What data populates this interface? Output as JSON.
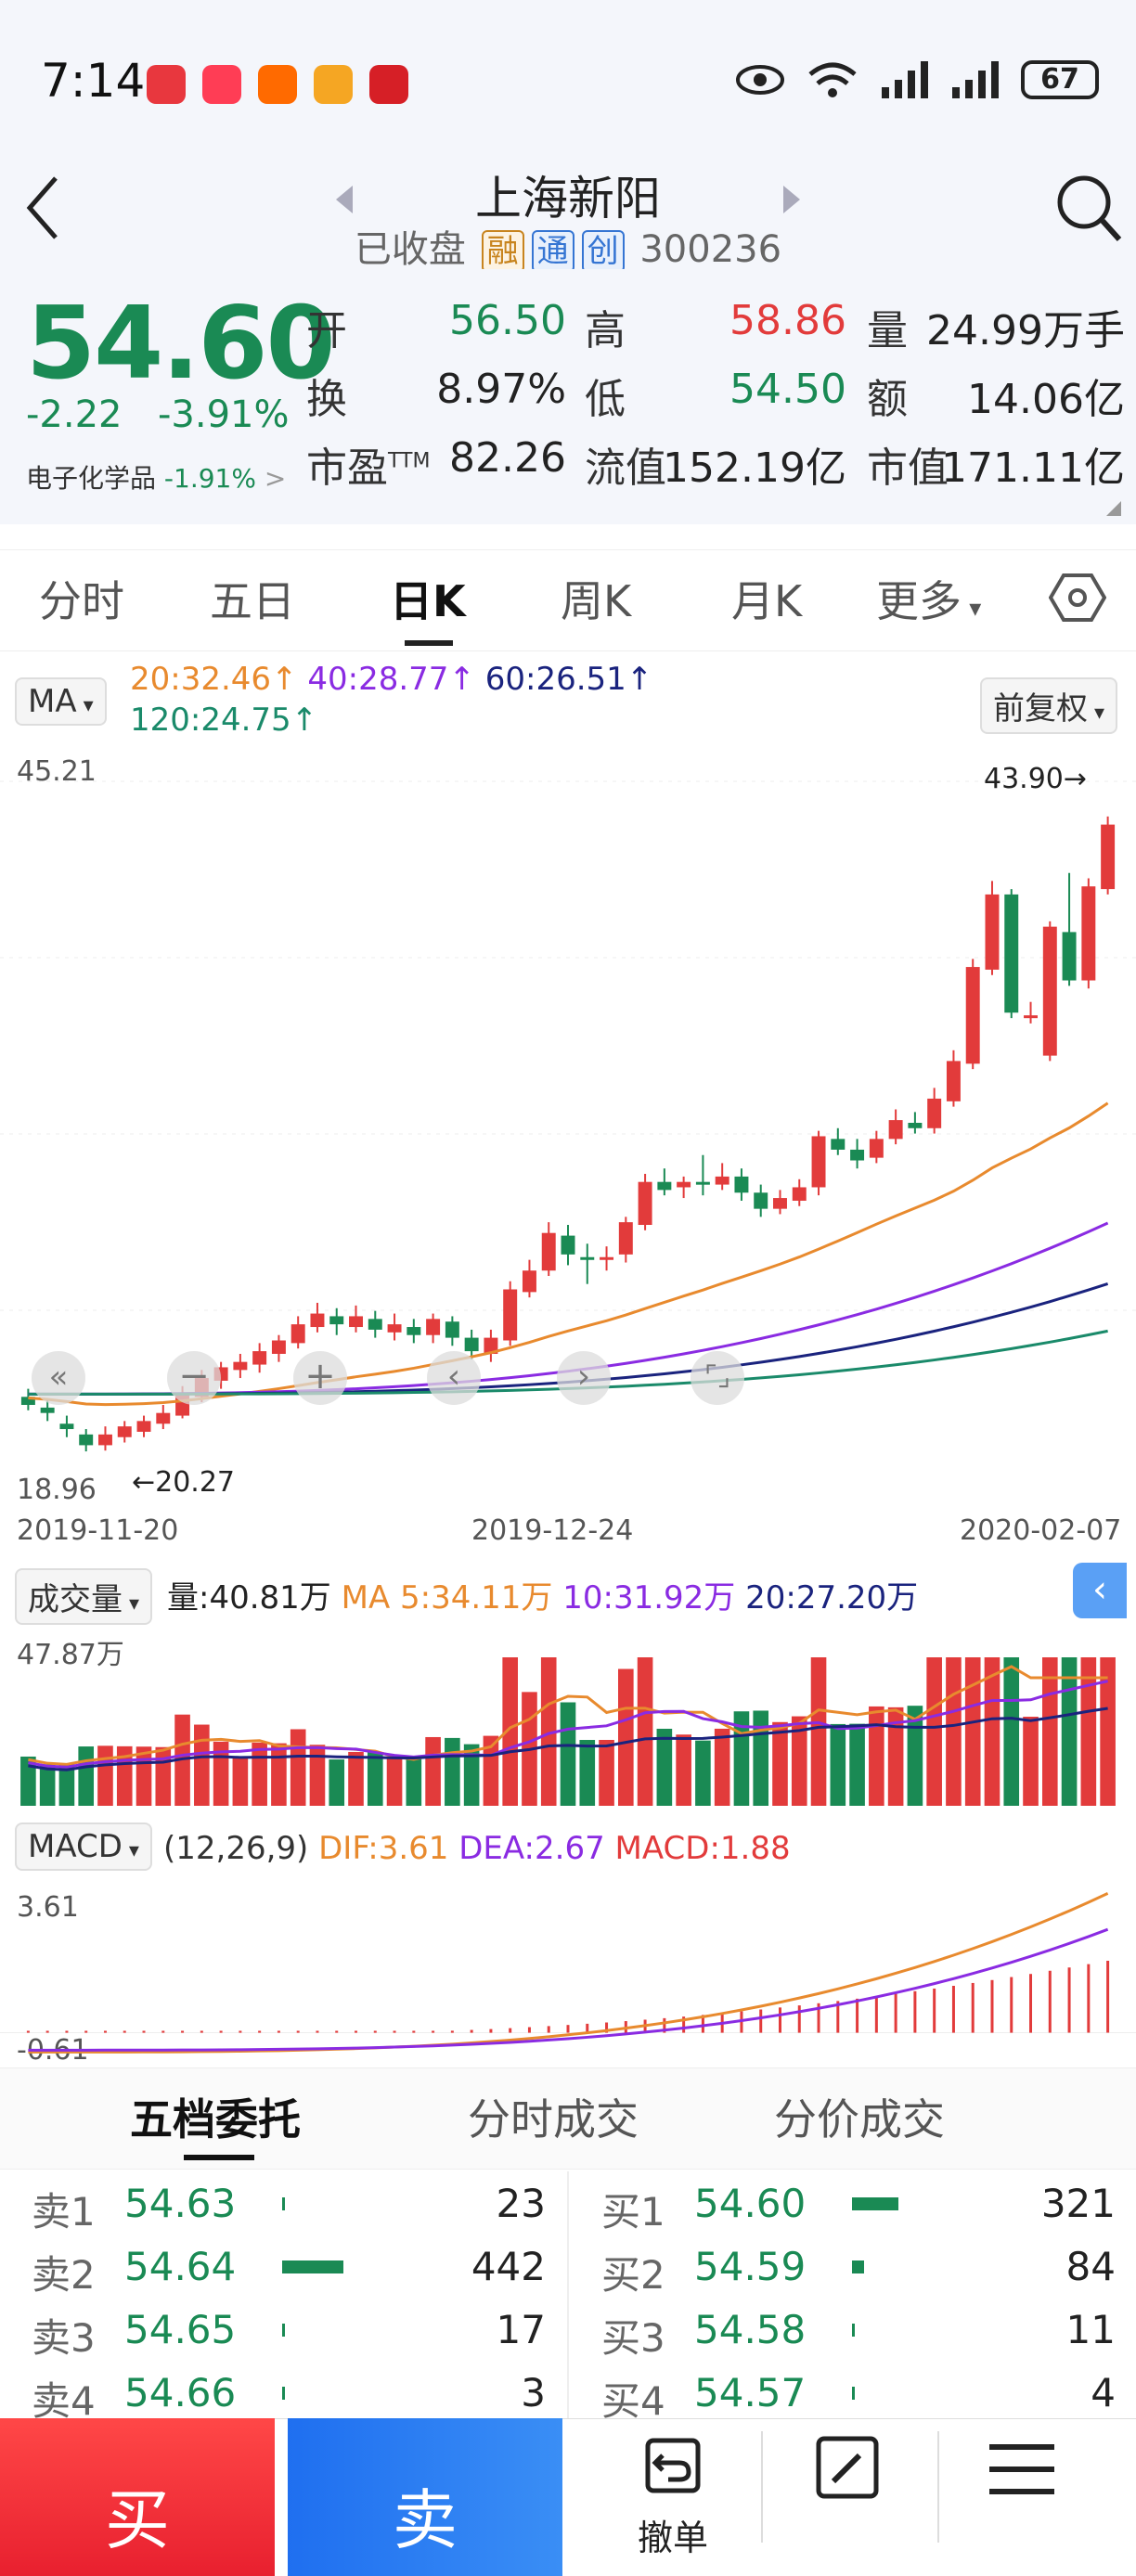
{
  "status_bar": {
    "time": "7:14",
    "battery": "67"
  },
  "header": {
    "title": "上海新阳",
    "status": "已收盘",
    "tags": [
      "融",
      "通",
      "创"
    ],
    "code": "300236"
  },
  "quote": {
    "price": "54.60",
    "change": "-2.22",
    "change_pct": "-3.91%",
    "sector": "电子化学品",
    "sector_pct": "-1.91%",
    "fields": [
      {
        "label": "开",
        "value": "56.50",
        "color": "green"
      },
      {
        "label": "高",
        "value": "58.86",
        "color": "red"
      },
      {
        "label": "量",
        "value": "24.99万手",
        "color": "dark"
      },
      {
        "label": "换",
        "value": "8.97%",
        "color": "dark"
      },
      {
        "label": "低",
        "value": "54.50",
        "color": "green"
      },
      {
        "label": "额",
        "value": "14.06亿",
        "color": "dark"
      },
      {
        "label": "市盈",
        "value": "82.26",
        "color": "dark"
      },
      {
        "label": "流值",
        "value": "152.19亿",
        "color": "dark"
      },
      {
        "label": "市值",
        "value": "171.11亿",
        "color": "dark"
      }
    ],
    "pe_superscript": "TTM"
  },
  "tabs": [
    "分时",
    "五日",
    "日K",
    "周K",
    "月K",
    "更多"
  ],
  "active_tab": "日K",
  "kline": {
    "ma_selector": "MA",
    "ma_legend": [
      {
        "label": "20:32.46",
        "color": "#e88a2e"
      },
      {
        "label": "40:28.77",
        "color": "#8a2be2"
      },
      {
        "label": "60:26.51",
        "color": "#1a237e"
      },
      {
        "label": "120:24.75",
        "color": "#1a8a6a"
      }
    ],
    "adjust": "前复权",
    "y_max": "45.21",
    "y_min": "18.96",
    "high_label": "43.90→",
    "low_label": "←20.27",
    "dates": [
      "2019-11-20",
      "2019-12-24",
      "2020-02-07"
    ]
  },
  "volume": {
    "selector": "成交量",
    "vol": "量:40.81万",
    "ma5": "MA 5:34.11万",
    "ma10": "10:31.92万",
    "ma20": "20:27.20万",
    "y_max": "47.87万"
  },
  "macd": {
    "selector": "MACD",
    "params": "(12,26,9)",
    "dif": "DIF:3.61",
    "dea": "DEA:2.67",
    "macd": "MACD:1.88",
    "y_max": "3.61",
    "y_min": "-0.61"
  },
  "orderbook": {
    "tabs": [
      "五档委托",
      "分时成交",
      "分价成交"
    ],
    "sell": [
      {
        "label": "卖1",
        "price": "54.63",
        "qty": "23",
        "bar": 0.03
      },
      {
        "label": "卖2",
        "price": "54.64",
        "qty": "442",
        "bar": 0.6
      },
      {
        "label": "卖3",
        "price": "54.65",
        "qty": "17",
        "bar": 0.02
      },
      {
        "label": "卖4",
        "price": "54.66",
        "qty": "3",
        "bar": 0.01
      }
    ],
    "buy": [
      {
        "label": "买1",
        "price": "54.60",
        "qty": "321",
        "bar": 0.45
      },
      {
        "label": "买2",
        "price": "54.59",
        "qty": "84",
        "bar": 0.12
      },
      {
        "label": "买3",
        "price": "54.58",
        "qty": "11",
        "bar": 0.02
      },
      {
        "label": "买4",
        "price": "54.57",
        "qty": "4",
        "bar": 0.01
      }
    ]
  },
  "actions": {
    "buy": "买",
    "sell": "卖",
    "cancel": "撤单"
  },
  "chart_data": {
    "type": "candlestick",
    "x_range": [
      "2019-11-20",
      "2020-02-07"
    ],
    "ylim": [
      18.96,
      45.21
    ],
    "series": [
      {
        "name": "MA20",
        "last": 32.46
      },
      {
        "name": "MA40",
        "last": 28.77
      },
      {
        "name": "MA60",
        "last": 26.51
      },
      {
        "name": "MA120",
        "last": 24.75
      }
    ],
    "candles": [
      [
        22.3,
        22.0,
        22.6,
        21.8
      ],
      [
        21.9,
        21.7,
        22.2,
        21.4
      ],
      [
        21.3,
        21.1,
        21.6,
        20.8
      ],
      [
        20.9,
        20.5,
        21.1,
        20.27
      ],
      [
        20.5,
        20.9,
        21.2,
        20.3
      ],
      [
        20.8,
        21.2,
        21.4,
        20.6
      ],
      [
        21.0,
        21.4,
        21.6,
        20.8
      ],
      [
        21.3,
        21.7,
        22.0,
        21.1
      ],
      [
        21.6,
        22.4,
        22.7,
        21.5
      ],
      [
        22.3,
        23.0,
        23.3,
        22.1
      ],
      [
        22.9,
        23.4,
        23.6,
        22.6
      ],
      [
        23.3,
        23.6,
        23.9,
        23.0
      ],
      [
        23.5,
        24.0,
        24.3,
        23.2
      ],
      [
        23.9,
        24.4,
        24.6,
        23.6
      ],
      [
        24.3,
        25.0,
        25.3,
        24.1
      ],
      [
        24.9,
        25.4,
        25.8,
        24.7
      ],
      [
        25.3,
        25.0,
        25.6,
        24.6
      ],
      [
        24.9,
        25.3,
        25.7,
        24.7
      ],
      [
        25.2,
        24.8,
        25.5,
        24.5
      ],
      [
        24.7,
        25.0,
        25.4,
        24.4
      ],
      [
        24.9,
        24.6,
        25.2,
        24.3
      ],
      [
        24.6,
        25.2,
        25.4,
        24.3
      ],
      [
        25.1,
        24.5,
        25.3,
        24.2
      ],
      [
        24.5,
        24.0,
        24.8,
        23.7
      ],
      [
        23.9,
        24.5,
        24.8,
        23.6
      ],
      [
        24.4,
        26.3,
        26.6,
        24.2
      ],
      [
        26.2,
        27.0,
        27.4,
        26.0
      ],
      [
        27.0,
        28.4,
        28.8,
        26.8
      ],
      [
        28.3,
        27.6,
        28.7,
        27.2
      ],
      [
        27.5,
        27.4,
        28.0,
        26.5
      ],
      [
        27.4,
        27.5,
        27.9,
        27.0
      ],
      [
        27.6,
        28.8,
        29.0,
        27.3
      ],
      [
        28.7,
        30.3,
        30.6,
        28.5
      ],
      [
        30.3,
        30.0,
        30.8,
        29.8
      ],
      [
        30.1,
        30.3,
        30.5,
        29.7
      ],
      [
        30.3,
        30.2,
        31.3,
        29.8
      ],
      [
        30.2,
        30.5,
        31.0,
        30.0
      ],
      [
        30.5,
        29.9,
        30.8,
        29.6
      ],
      [
        29.9,
        29.3,
        30.2,
        29.0
      ],
      [
        29.3,
        29.7,
        30.0,
        29.1
      ],
      [
        29.6,
        30.1,
        30.4,
        29.4
      ],
      [
        30.1,
        32.0,
        32.2,
        29.8
      ],
      [
        31.9,
        31.5,
        32.3,
        31.3
      ],
      [
        31.5,
        31.1,
        31.9,
        30.8
      ],
      [
        31.2,
        31.9,
        32.2,
        31.0
      ],
      [
        31.9,
        32.6,
        33.0,
        31.7
      ],
      [
        32.5,
        32.3,
        32.9,
        32.1
      ],
      [
        32.3,
        33.4,
        33.8,
        32.1
      ],
      [
        33.3,
        34.8,
        35.2,
        33.1
      ],
      [
        34.7,
        38.3,
        38.6,
        34.5
      ],
      [
        38.2,
        41.0,
        41.5,
        38.0
      ],
      [
        41.0,
        36.6,
        41.2,
        36.4
      ],
      [
        36.5,
        36.5,
        37.0,
        36.2
      ],
      [
        35.0,
        39.8,
        40.0,
        34.8
      ],
      [
        39.6,
        37.8,
        41.8,
        37.6
      ],
      [
        37.8,
        41.3,
        41.6,
        37.5
      ],
      [
        41.2,
        43.6,
        43.9,
        41.0
      ]
    ]
  }
}
